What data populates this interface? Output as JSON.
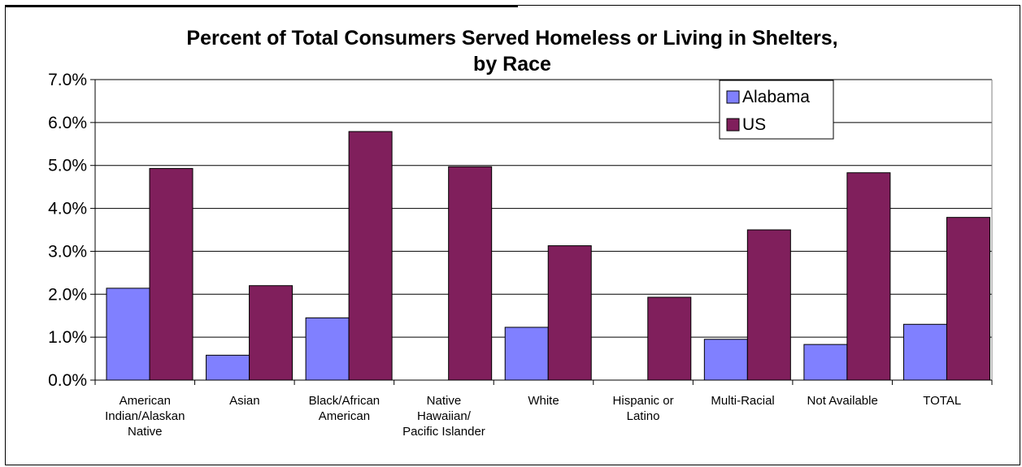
{
  "chart_data": {
    "type": "bar",
    "title": "Percent of Total Consumers Served Homeless or Living in Shelters,",
    "subtitle": "by Race",
    "xlabel": "",
    "ylabel": "",
    "ylim": [
      0,
      0.07
    ],
    "y_ticks": [
      "0.0%",
      "1.0%",
      "2.0%",
      "3.0%",
      "4.0%",
      "5.0%",
      "6.0%",
      "7.0%"
    ],
    "categories": [
      [
        "American",
        "Indian/Alaskan",
        "Native"
      ],
      [
        "Asian"
      ],
      [
        "Black/African",
        "American"
      ],
      [
        "Native",
        "Hawaiian/",
        "Pacific Islander"
      ],
      [
        "White"
      ],
      [
        "Hispanic or",
        "Latino"
      ],
      [
        "Multi-Racial"
      ],
      [
        "Not Available"
      ],
      [
        "TOTAL"
      ]
    ],
    "series": [
      {
        "name": "Alabama",
        "color": "#8080ff",
        "values": [
          0.0214,
          0.0058,
          0.0145,
          0,
          0.0123,
          0,
          0.0095,
          0.0083,
          0.013
        ]
      },
      {
        "name": "US",
        "color": "#801f5c",
        "values": [
          0.0493,
          0.022,
          0.0579,
          0.0497,
          0.0313,
          0.0193,
          0.035,
          0.0483,
          0.0379
        ]
      }
    ],
    "grid": true,
    "legend_position": "top-right"
  }
}
